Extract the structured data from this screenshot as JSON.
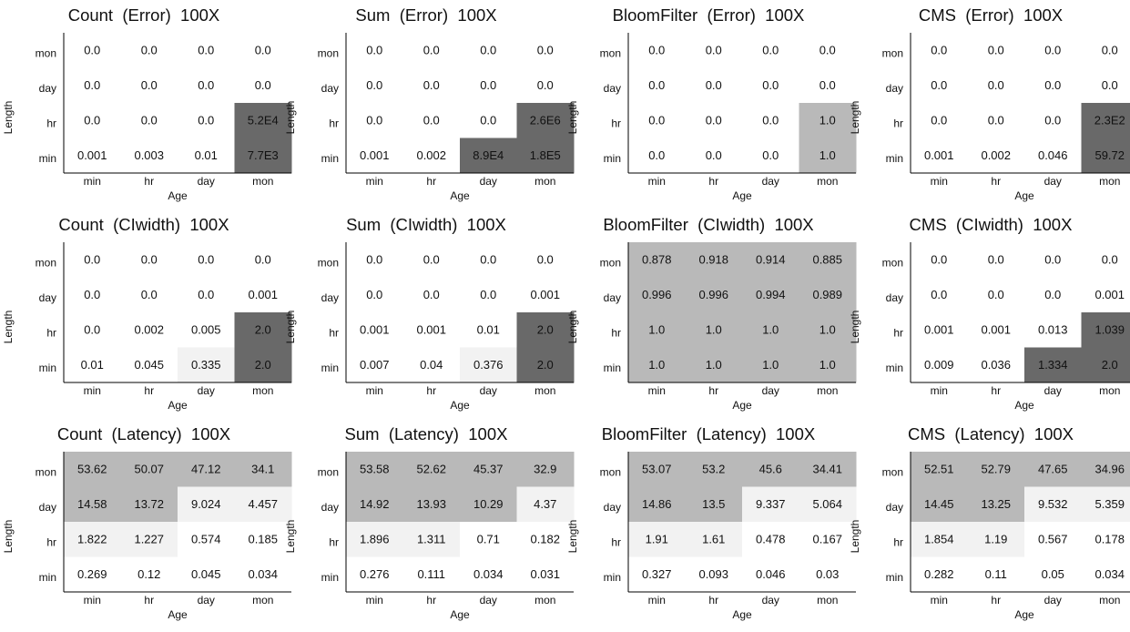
{
  "chart_data": [
    {
      "type": "heatmap",
      "title": "Count  (Error)  100X",
      "xlabel": "Age",
      "ylabel": "Length",
      "x_categories": [
        "min",
        "hr",
        "day",
        "mon"
      ],
      "y_categories": [
        "mon",
        "day",
        "hr",
        "min"
      ],
      "cells": [
        [
          "0.0",
          "0.0",
          "0.0",
          "0.0"
        ],
        [
          "0.0",
          "0.0",
          "0.0",
          "0.0"
        ],
        [
          "0.0",
          "0.0",
          "0.0",
          "5.2E4"
        ],
        [
          "0.001",
          "0.003",
          "0.01",
          "7.7E3"
        ]
      ],
      "levels": [
        [
          0,
          0,
          0,
          0
        ],
        [
          0,
          0,
          0,
          0
        ],
        [
          0,
          0,
          0,
          3
        ],
        [
          0,
          0,
          0,
          3
        ]
      ]
    },
    {
      "type": "heatmap",
      "title": "Sum  (Error)  100X",
      "xlabel": "Age",
      "ylabel": "Length",
      "x_categories": [
        "min",
        "hr",
        "day",
        "mon"
      ],
      "y_categories": [
        "mon",
        "day",
        "hr",
        "min"
      ],
      "cells": [
        [
          "0.0",
          "0.0",
          "0.0",
          "0.0"
        ],
        [
          "0.0",
          "0.0",
          "0.0",
          "0.0"
        ],
        [
          "0.0",
          "0.0",
          "0.0",
          "2.6E6"
        ],
        [
          "0.001",
          "0.002",
          "8.9E4",
          "1.8E5"
        ]
      ],
      "levels": [
        [
          0,
          0,
          0,
          0
        ],
        [
          0,
          0,
          0,
          0
        ],
        [
          0,
          0,
          0,
          3
        ],
        [
          0,
          0,
          3,
          3
        ]
      ]
    },
    {
      "type": "heatmap",
      "title": "BloomFilter  (Error)  100X",
      "xlabel": "Age",
      "ylabel": "Length",
      "x_categories": [
        "min",
        "hr",
        "day",
        "mon"
      ],
      "y_categories": [
        "mon",
        "day",
        "hr",
        "min"
      ],
      "cells": [
        [
          "0.0",
          "0.0",
          "0.0",
          "0.0"
        ],
        [
          "0.0",
          "0.0",
          "0.0",
          "0.0"
        ],
        [
          "0.0",
          "0.0",
          "0.0",
          "1.0"
        ],
        [
          "0.0",
          "0.0",
          "0.0",
          "1.0"
        ]
      ],
      "levels": [
        [
          0,
          0,
          0,
          0
        ],
        [
          0,
          0,
          0,
          0
        ],
        [
          0,
          0,
          0,
          2
        ],
        [
          0,
          0,
          0,
          2
        ]
      ]
    },
    {
      "type": "heatmap",
      "title": "CMS  (Error)  100X",
      "xlabel": "Age",
      "ylabel": "Length",
      "x_categories": [
        "min",
        "hr",
        "day",
        "mon"
      ],
      "y_categories": [
        "mon",
        "day",
        "hr",
        "min"
      ],
      "cells": [
        [
          "0.0",
          "0.0",
          "0.0",
          "0.0"
        ],
        [
          "0.0",
          "0.0",
          "0.0",
          "0.0"
        ],
        [
          "0.0",
          "0.0",
          "0.0",
          "2.3E2"
        ],
        [
          "0.001",
          "0.002",
          "0.046",
          "59.72"
        ]
      ],
      "levels": [
        [
          0,
          0,
          0,
          0
        ],
        [
          0,
          0,
          0,
          0
        ],
        [
          0,
          0,
          0,
          3
        ],
        [
          0,
          0,
          0,
          3
        ]
      ]
    },
    {
      "type": "heatmap",
      "title": "Count  (CIwidth)  100X",
      "xlabel": "Age",
      "ylabel": "Length",
      "x_categories": [
        "min",
        "hr",
        "day",
        "mon"
      ],
      "y_categories": [
        "mon",
        "day",
        "hr",
        "min"
      ],
      "cells": [
        [
          "0.0",
          "0.0",
          "0.0",
          "0.0"
        ],
        [
          "0.0",
          "0.0",
          "0.0",
          "0.001"
        ],
        [
          "0.0",
          "0.002",
          "0.005",
          "2.0"
        ],
        [
          "0.01",
          "0.045",
          "0.335",
          "2.0"
        ]
      ],
      "levels": [
        [
          0,
          0,
          0,
          0
        ],
        [
          0,
          0,
          0,
          0
        ],
        [
          0,
          0,
          0,
          3
        ],
        [
          0,
          0,
          1,
          3
        ]
      ]
    },
    {
      "type": "heatmap",
      "title": "Sum  (CIwidth)  100X",
      "xlabel": "Age",
      "ylabel": "Length",
      "x_categories": [
        "min",
        "hr",
        "day",
        "mon"
      ],
      "y_categories": [
        "mon",
        "day",
        "hr",
        "min"
      ],
      "cells": [
        [
          "0.0",
          "0.0",
          "0.0",
          "0.0"
        ],
        [
          "0.0",
          "0.0",
          "0.0",
          "0.001"
        ],
        [
          "0.001",
          "0.001",
          "0.01",
          "2.0"
        ],
        [
          "0.007",
          "0.04",
          "0.376",
          "2.0"
        ]
      ],
      "levels": [
        [
          0,
          0,
          0,
          0
        ],
        [
          0,
          0,
          0,
          0
        ],
        [
          0,
          0,
          0,
          3
        ],
        [
          0,
          0,
          1,
          3
        ]
      ]
    },
    {
      "type": "heatmap",
      "title": "BloomFilter  (CIwidth)  100X",
      "xlabel": "Age",
      "ylabel": "Length",
      "x_categories": [
        "min",
        "hr",
        "day",
        "mon"
      ],
      "y_categories": [
        "mon",
        "day",
        "hr",
        "min"
      ],
      "cells": [
        [
          "0.878",
          "0.918",
          "0.914",
          "0.885"
        ],
        [
          "0.996",
          "0.996",
          "0.994",
          "0.989"
        ],
        [
          "1.0",
          "1.0",
          "1.0",
          "1.0"
        ],
        [
          "1.0",
          "1.0",
          "1.0",
          "1.0"
        ]
      ],
      "levels": [
        [
          2,
          2,
          2,
          2
        ],
        [
          2,
          2,
          2,
          2
        ],
        [
          2,
          2,
          2,
          2
        ],
        [
          2,
          2,
          2,
          2
        ]
      ]
    },
    {
      "type": "heatmap",
      "title": "CMS  (CIwidth)  100X",
      "xlabel": "Age",
      "ylabel": "Length",
      "x_categories": [
        "min",
        "hr",
        "day",
        "mon"
      ],
      "y_categories": [
        "mon",
        "day",
        "hr",
        "min"
      ],
      "cells": [
        [
          "0.0",
          "0.0",
          "0.0",
          "0.0"
        ],
        [
          "0.0",
          "0.0",
          "0.0",
          "0.001"
        ],
        [
          "0.001",
          "0.001",
          "0.013",
          "1.039"
        ],
        [
          "0.009",
          "0.036",
          "1.334",
          "2.0"
        ]
      ],
      "levels": [
        [
          0,
          0,
          0,
          0
        ],
        [
          0,
          0,
          0,
          0
        ],
        [
          0,
          0,
          0,
          3
        ],
        [
          0,
          0,
          3,
          3
        ]
      ]
    },
    {
      "type": "heatmap",
      "title": "Count  (Latency)  100X",
      "xlabel": "Age",
      "ylabel": "Length",
      "x_categories": [
        "min",
        "hr",
        "day",
        "mon"
      ],
      "y_categories": [
        "mon",
        "day",
        "hr",
        "min"
      ],
      "cells": [
        [
          "53.62",
          "50.07",
          "47.12",
          "34.1"
        ],
        [
          "14.58",
          "13.72",
          "9.024",
          "4.457"
        ],
        [
          "1.822",
          "1.227",
          "0.574",
          "0.185"
        ],
        [
          "0.269",
          "0.12",
          "0.045",
          "0.034"
        ]
      ],
      "levels": [
        [
          2,
          2,
          2,
          2
        ],
        [
          2,
          2,
          1,
          1
        ],
        [
          1,
          1,
          0,
          0
        ],
        [
          0,
          0,
          0,
          0
        ]
      ]
    },
    {
      "type": "heatmap",
      "title": "Sum  (Latency)  100X",
      "xlabel": "Age",
      "ylabel": "Length",
      "x_categories": [
        "min",
        "hr",
        "day",
        "mon"
      ],
      "y_categories": [
        "mon",
        "day",
        "hr",
        "min"
      ],
      "cells": [
        [
          "53.58",
          "52.62",
          "45.37",
          "32.9"
        ],
        [
          "14.92",
          "13.93",
          "10.29",
          "4.37"
        ],
        [
          "1.896",
          "1.311",
          "0.71",
          "0.182"
        ],
        [
          "0.276",
          "0.111",
          "0.034",
          "0.031"
        ]
      ],
      "levels": [
        [
          2,
          2,
          2,
          2
        ],
        [
          2,
          2,
          2,
          1
        ],
        [
          1,
          1,
          0,
          0
        ],
        [
          0,
          0,
          0,
          0
        ]
      ]
    },
    {
      "type": "heatmap",
      "title": "BloomFilter  (Latency)  100X",
      "xlabel": "Age",
      "ylabel": "Length",
      "x_categories": [
        "min",
        "hr",
        "day",
        "mon"
      ],
      "y_categories": [
        "mon",
        "day",
        "hr",
        "min"
      ],
      "cells": [
        [
          "53.07",
          "53.2",
          "45.6",
          "34.41"
        ],
        [
          "14.86",
          "13.5",
          "9.337",
          "5.064"
        ],
        [
          "1.91",
          "1.61",
          "0.478",
          "0.167"
        ],
        [
          "0.327",
          "0.093",
          "0.046",
          "0.03"
        ]
      ],
      "levels": [
        [
          2,
          2,
          2,
          2
        ],
        [
          2,
          2,
          1,
          1
        ],
        [
          1,
          1,
          0,
          0
        ],
        [
          0,
          0,
          0,
          0
        ]
      ]
    },
    {
      "type": "heatmap",
      "title": "CMS  (Latency)  100X",
      "xlabel": "Age",
      "ylabel": "Length",
      "x_categories": [
        "min",
        "hr",
        "day",
        "mon"
      ],
      "y_categories": [
        "mon",
        "day",
        "hr",
        "min"
      ],
      "cells": [
        [
          "52.51",
          "52.79",
          "47.65",
          "34.96"
        ],
        [
          "14.45",
          "13.25",
          "9.532",
          "5.359"
        ],
        [
          "1.854",
          "1.19",
          "0.567",
          "0.178"
        ],
        [
          "0.282",
          "0.11",
          "0.05",
          "0.034"
        ]
      ],
      "levels": [
        [
          2,
          2,
          2,
          2
        ],
        [
          2,
          2,
          1,
          1
        ],
        [
          1,
          1,
          0,
          0
        ],
        [
          0,
          0,
          0,
          0
        ]
      ]
    }
  ],
  "colors": {
    "level_0": "#ffffff",
    "level_1": "#f2f2f2",
    "level_2": "#b9b9b9",
    "level_3": "#696969",
    "axis": "#000000",
    "text": "#111111"
  }
}
